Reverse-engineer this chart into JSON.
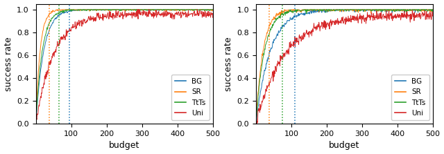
{
  "xlim": [
    0,
    500
  ],
  "ylim": [
    0.0,
    1.05
  ],
  "xlabel": "budget",
  "ylabel": "success rate",
  "colors": {
    "BG": "#1f77b4",
    "SR": "#ff7f0e",
    "TtTs": "#2ca02c",
    "Uni": "#d62728"
  },
  "legend_labels": [
    "BG",
    "SR",
    "TtTs",
    "Uni"
  ],
  "vlines_left": {
    "SR": 38,
    "TtTs": 65,
    "BG": 95
  },
  "vlines_right": {
    "SR": 38,
    "TtTs": 75,
    "BG": 110
  },
  "n_points": 500,
  "figsize": [
    6.4,
    2.23
  ],
  "dpi": 100
}
